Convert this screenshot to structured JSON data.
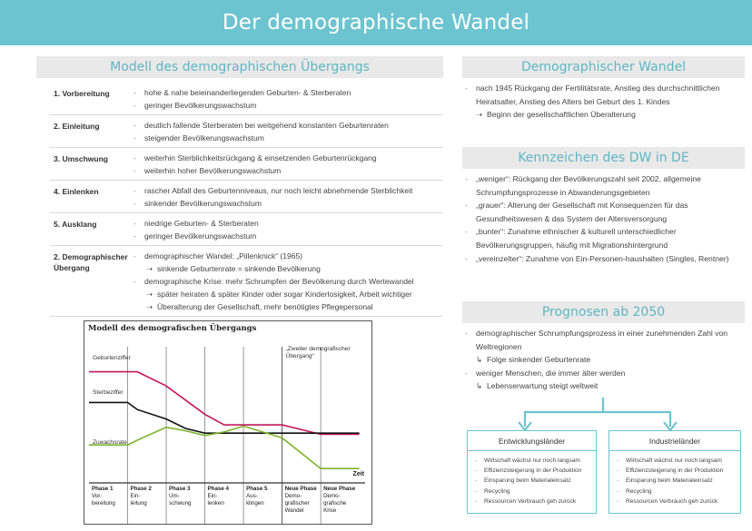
{
  "page": {
    "title": "Der demographische Wandel"
  },
  "left": {
    "heading": "Modell des demographischen Übergangs",
    "phases": [
      {
        "name": "1. Vorbereitung",
        "items": [
          {
            "text": "hohe & nahe beieinanderliegenden Geburten- & Sterberaten",
            "sub": false
          },
          {
            "text": "geringer Bevölkerungswachstum",
            "sub": false
          }
        ]
      },
      {
        "name": "2. Einleitung",
        "items": [
          {
            "text": "deutlich fallende Sterberaten bei weitgehend konstanten Geburtenraten",
            "sub": false
          },
          {
            "text": "steigender Bevölkerungswachstum",
            "sub": false
          }
        ]
      },
      {
        "name": "3. Umschwung",
        "items": [
          {
            "text": "weiterhin Sterblichkeitsrückgang & einsetzenden Geburtenrückgang",
            "sub": false
          },
          {
            "text": "weiterhin hoher Bevölkerungswachstum",
            "sub": false
          }
        ]
      },
      {
        "name": "4. Einlenken",
        "items": [
          {
            "text": "rascher Abfall des Geburtenniveaus, nur noch leicht abnehmende Sterblichkeit",
            "sub": false
          },
          {
            "text": "sinkender Bevölkerungswachstum",
            "sub": false
          }
        ]
      },
      {
        "name": "5. Ausklang",
        "items": [
          {
            "text": "niedrige Geburten- & Sterberaten",
            "sub": false
          },
          {
            "text": "geringer Bevölkerungswachstum",
            "sub": false
          }
        ]
      },
      {
        "name": "2. Demographischer Übergang",
        "items": [
          {
            "text": "demographischer Wandel: „Pillenknick“ (1965)",
            "sub": false
          },
          {
            "text": "sinkende Geburtenrate = sinkende Bevölkerung",
            "sub": true
          },
          {
            "text": "demographische Krise: mehr Schrumpfen der Bevölkerung durch Wertewandel",
            "sub": false
          },
          {
            "text": "später heiraten & später Kinder oder sogar Kinderlosigkeit, Arbeit wichtiger",
            "sub": true
          },
          {
            "text": "Überalterung der Gesellschaft, mehr benötigtes Pflegepersonal",
            "sub": true
          }
        ]
      }
    ]
  },
  "chart_data": {
    "type": "line",
    "title": "Modell des demografischen Übergangs",
    "xlabel": "Zeit",
    "annotation": "„Zweiter demografischer Übergang“",
    "categories": [
      "Phase 1 Vor-bereitung",
      "Phase 2 Ein-leitung",
      "Phase 3 Um-schwung",
      "Phase 4 Ein-lenken",
      "Phase 5 Aus-klingen",
      "Neue Phase Demo-grafischer Wandel",
      "Neue Phase Demo-grafische Krise"
    ],
    "category_lines": [
      [
        "Phase 1",
        "Vor-",
        "bereitung"
      ],
      [
        "Phase 2",
        "Ein-",
        "leitung"
      ],
      [
        "Phase 3",
        "Um-",
        "schwung"
      ],
      [
        "Phase 4",
        "Ein-",
        "lenken"
      ],
      [
        "Phase 5",
        "Aus-",
        "klingen"
      ],
      [
        "Neue Phase",
        "Demo-",
        "grafischer",
        "Wandel"
      ],
      [
        "Neue Phase",
        "Demo-",
        "grafische",
        "Krise"
      ]
    ],
    "x": [
      0,
      1,
      1.25,
      2,
      2.5,
      3,
      3.5,
      4,
      5,
      6,
      7
    ],
    "series": [
      {
        "name": "Geburtenziffer",
        "color": "#c2185b",
        "values": [
          88,
          88,
          88,
          76,
          64,
          52,
          43,
          43,
          43,
          35,
          35
        ]
      },
      {
        "name": "Sterbeziffer",
        "color": "#111111",
        "values": [
          62,
          62,
          56,
          48,
          40,
          36,
          36,
          36,
          36,
          36,
          36
        ]
      },
      {
        "name": "Zuwachsrate",
        "color": "#7cb32a",
        "values": [
          26,
          26,
          30,
          41,
          38,
          34,
          37,
          42,
          32,
          6,
          6
        ]
      }
    ],
    "xlim": [
      0,
      7.15
    ],
    "ylim": [
      0,
      100
    ],
    "grid": false
  },
  "right": {
    "wandel": {
      "heading": "Demographischer Wandel",
      "items": [
        {
          "text": "nach 1945 Rückgang der Fertilitätsrate, Anstieg des durchschnittlichen Heiratsalter, Anstieg des Alters bei Geburt des 1. Kindes",
          "type": "dash"
        },
        {
          "text": "Beginn der gesellschaftlichen Überalterung",
          "type": "arrow"
        }
      ]
    },
    "kennzeichen": {
      "heading": "Kennzeichen des DW in DE",
      "items": [
        {
          "text": "„weniger“: Rückgang der Bevölkerungszahl seit 2002, allgemeine Schrumpfungsprozesse in Abwanderungsgebieten",
          "type": "dash"
        },
        {
          "text": "„grauer“: Alterung der Gesellschaft mit Konsequenzen für das Gesundheitswesen & das System der Altersversorgung",
          "type": "dash"
        },
        {
          "text": "„bunter“: Zunahme ethnischer & kulturell unterschiedlicher Bevölkerungsgruppen, häufig mit Migrationshintergrund",
          "type": "dash"
        },
        {
          "text": "„vereinzelter“: Zunahme von Ein-Personen-haushalten (Singles, Rentner)",
          "type": "dash"
        }
      ]
    },
    "prognosen": {
      "heading": "Prognosen ab 2050",
      "items": [
        {
          "text": "demographischer Schrumpfungsprozess in einer zunehmenden Zahl von Weltregionen",
          "type": "dash"
        },
        {
          "text": "Folge sinkender Geburtenrate",
          "type": "hook"
        },
        {
          "text": "weniger Menschen, die immer älter werden",
          "type": "dash"
        },
        {
          "text": "Lebenserwartung steigt weltweit",
          "type": "hook"
        }
      ]
    },
    "boxes": [
      {
        "title": "Entwicklungsländer",
        "items": [
          "Wirtschaft wächst nur noch langsam",
          "Effizienzsteigerung in der Produktion",
          "Einsparung beim Materialeinsatz",
          "Recycling",
          "Ressourcen Verbrauch geh zurück"
        ]
      },
      {
        "title": "Industrieländer",
        "items": [
          "Wirtschaft wächst nur noch langsam",
          "Effizienzsteigerung in der Produktion",
          "Einsparung beim Materialeinsatz",
          "Recycling",
          "Ressourcen Verbrauch geh zurück"
        ]
      }
    ],
    "accent": "#6cc4d0"
  }
}
